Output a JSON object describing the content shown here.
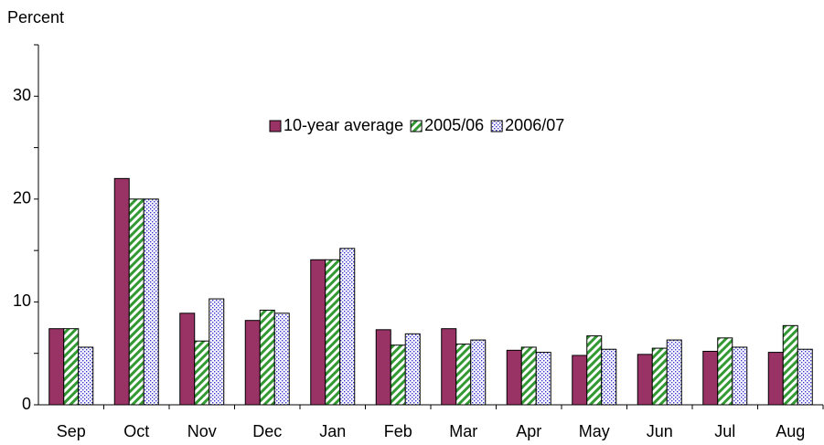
{
  "chart_data": {
    "type": "bar",
    "y_label": "Percent",
    "categories": [
      "Sep",
      "Oct",
      "Nov",
      "Dec",
      "Jan",
      "Feb",
      "Mar",
      "Apr",
      "May",
      "Jun",
      "Jul",
      "Aug"
    ],
    "series": [
      {
        "name": "10-year average",
        "color": "#993366",
        "pattern": "solid",
        "values": [
          7.4,
          22.0,
          8.9,
          8.2,
          14.1,
          7.3,
          7.4,
          5.3,
          4.8,
          4.9,
          5.2,
          5.1
        ]
      },
      {
        "name": "2005/06",
        "color": "#339933",
        "pattern": "stripes",
        "values": [
          7.4,
          20.0,
          6.2,
          9.2,
          14.1,
          5.8,
          5.9,
          5.6,
          6.7,
          5.5,
          6.5,
          7.7
        ]
      },
      {
        "name": "2006/07",
        "color": "#3333cc",
        "pattern": "dots",
        "values": [
          5.6,
          20.0,
          10.3,
          8.9,
          15.2,
          6.9,
          6.3,
          5.1,
          5.4,
          6.3,
          5.6,
          5.4
        ]
      }
    ],
    "ylim": [
      0,
      35
    ],
    "yticks": [
      0,
      10,
      20,
      30
    ],
    "minor_yticks": [
      5,
      15,
      25,
      35
    ],
    "grid": false,
    "legend": "top"
  }
}
